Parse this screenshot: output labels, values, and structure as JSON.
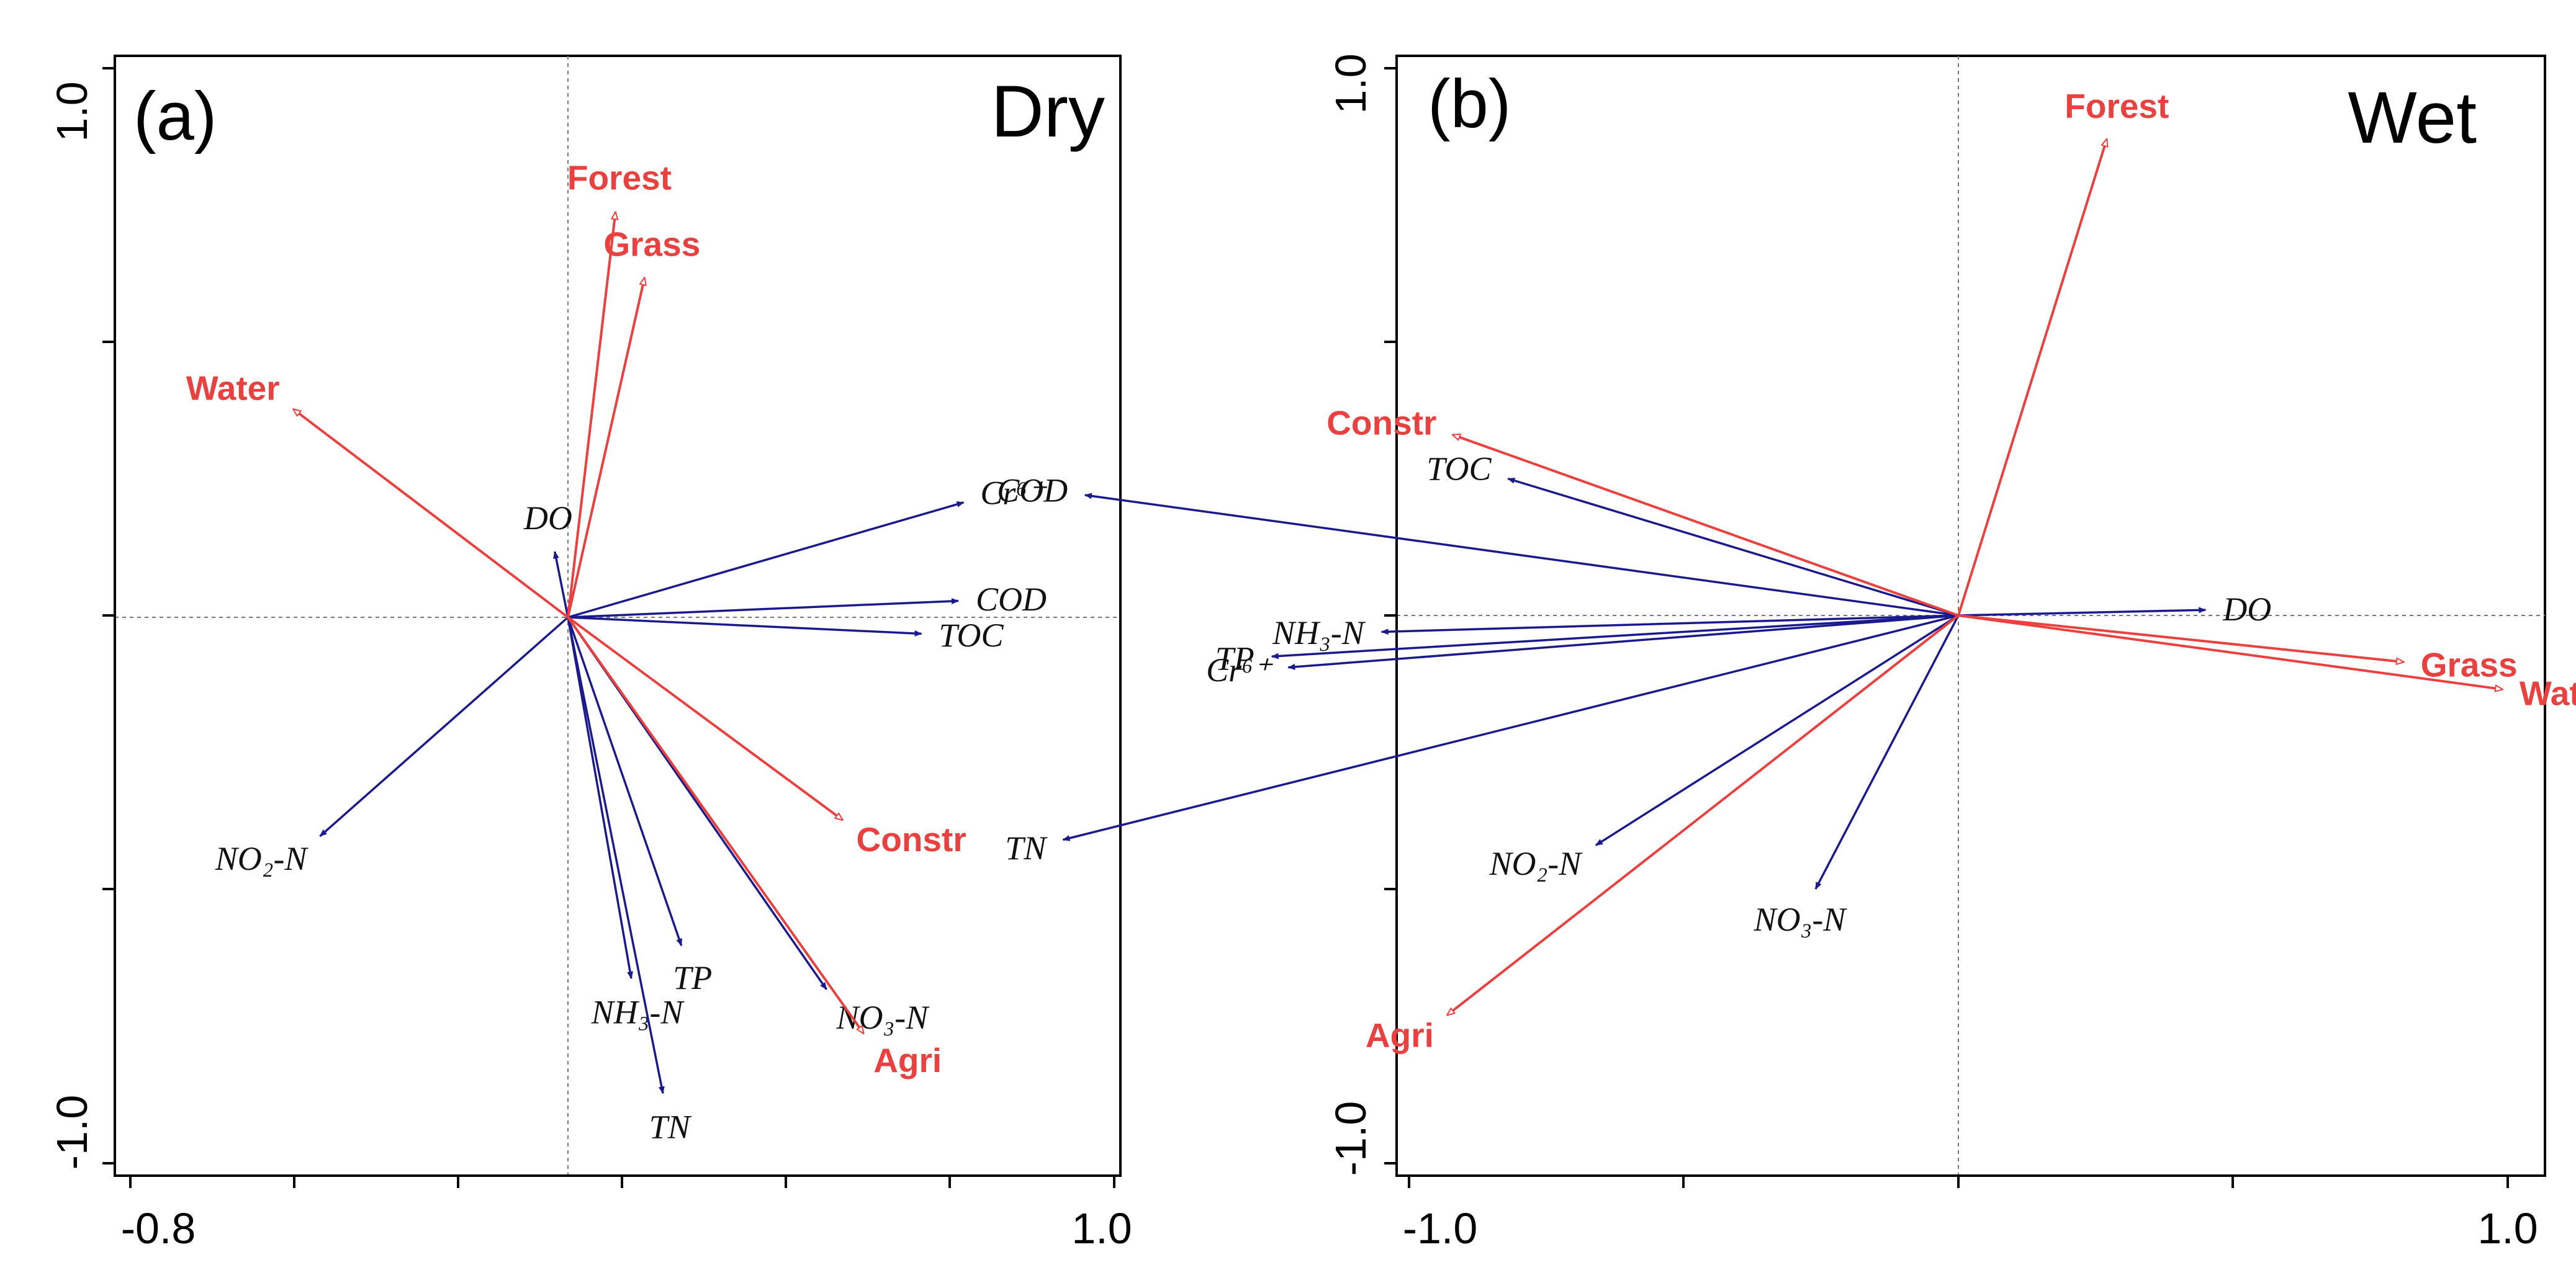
{
  "colors": {
    "env": "#e8413f",
    "resp": "#1a1a8c",
    "axis": "#000000",
    "guide": "#777777"
  },
  "chart_data": [
    {
      "type": "biplot",
      "panel": "(a)",
      "title": "Dry",
      "x_tick_labels": [
        "-0.8",
        "1.0"
      ],
      "y_tick_labels": [
        "1.0",
        "-1.0"
      ],
      "xlim": [
        -0.8,
        1.0
      ],
      "ylim": [
        -1.0,
        1.0
      ],
      "env_vectors": [
        {
          "label": "Forest",
          "x": 0.09,
          "y": 0.74
        },
        {
          "label": "Grass",
          "x": 0.145,
          "y": 0.62
        },
        {
          "label": "Water",
          "x": -0.52,
          "y": 0.38
        },
        {
          "label": "Constr",
          "x": 0.52,
          "y": -0.37
        },
        {
          "label": "Agri",
          "x": 0.56,
          "y": -0.76
        }
      ],
      "resp_vectors": [
        {
          "label": "Cr⁶⁺",
          "x": 0.75,
          "y": 0.21
        },
        {
          "label": "DO",
          "x": -0.025,
          "y": 0.12
        },
        {
          "label": "COD",
          "x": 0.74,
          "y": 0.03
        },
        {
          "label": "TOC",
          "x": 0.67,
          "y": -0.03
        },
        {
          "label": "NO₂-N",
          "x": -0.47,
          "y": -0.4
        },
        {
          "label": "TP",
          "x": 0.215,
          "y": -0.6
        },
        {
          "label": "NH₃-N",
          "x": 0.12,
          "y": -0.66
        },
        {
          "label": "TN",
          "x": 0.18,
          "y": -0.87
        },
        {
          "label": "NO₃-N",
          "x": 0.49,
          "y": -0.68
        }
      ]
    },
    {
      "type": "biplot",
      "panel": "(b)",
      "title": "Wet",
      "x_tick_labels": [
        "-1.0",
        "1.0"
      ],
      "y_tick_labels": [
        "1.0",
        "-1.0"
      ],
      "xlim": [
        -1.0,
        1.0
      ],
      "ylim": [
        -1.0,
        1.0
      ],
      "env_vectors": [
        {
          "label": "Forest",
          "x": 0.27,
          "y": 0.87
        },
        {
          "label": "Constr",
          "x": -0.92,
          "y": 0.33
        },
        {
          "label": "Grass",
          "x": 0.81,
          "y": -0.085
        },
        {
          "label": "Water",
          "x": 0.99,
          "y": -0.135
        },
        {
          "label": "Agri",
          "x": -0.93,
          "y": -0.73
        }
      ],
      "resp_vectors": [
        {
          "label": "TOC",
          "x": -0.82,
          "y": 0.25
        },
        {
          "label": "COD",
          "x": -1.59,
          "y": 0.22
        },
        {
          "label": "DO",
          "x": 0.45,
          "y": 0.01
        },
        {
          "label": "NH₃-N",
          "x": -1.05,
          "y": -0.03
        },
        {
          "label": "TP",
          "x": -1.25,
          "y": -0.075
        },
        {
          "label": "Cr⁶⁺",
          "x": -1.22,
          "y": -0.095
        },
        {
          "label": "TN",
          "x": -1.63,
          "y": -0.41
        },
        {
          "label": "NO₂-N",
          "x": -0.66,
          "y": -0.42
        },
        {
          "label": "NO₃-N",
          "x": -0.26,
          "y": -0.5
        }
      ]
    }
  ]
}
